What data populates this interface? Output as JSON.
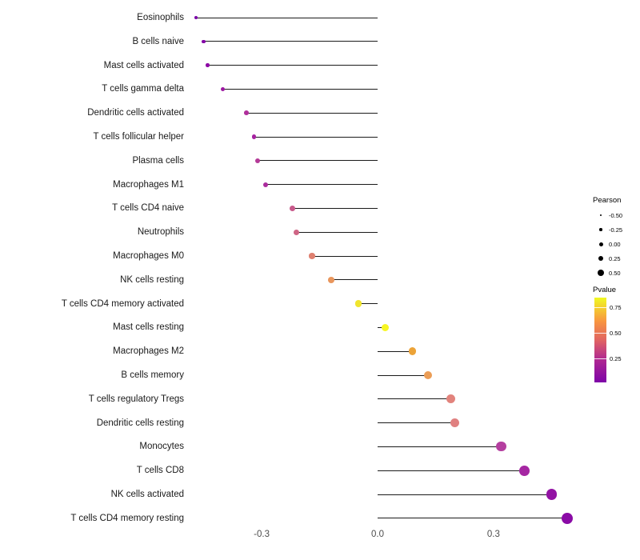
{
  "chart_data": {
    "type": "lollipop",
    "title": "",
    "xlabel": "",
    "ylabel": "",
    "x_ticks": [
      "-0.3",
      "0.0",
      "0.3"
    ],
    "xlim": [
      -0.52,
      0.55
    ],
    "grid": false,
    "categories": [
      "Eosinophils",
      "B cells naive",
      "Mast cells activated",
      "T cells gamma delta",
      "Dendritic cells activated",
      "T cells follicular helper",
      "Plasma cells",
      "Macrophages M1",
      "T cells CD4 naive",
      "Neutrophils",
      "Macrophages M0",
      "NK cells resting",
      "T cells CD4 memory activated",
      "Mast cells resting",
      "Macrophages M2",
      "B cells memory",
      "T cells regulatory  Tregs",
      "Dendritic cells resting",
      "Monocytes",
      "T cells CD8",
      "NK cells activated",
      "T cells CD4 memory resting"
    ],
    "values": [
      -0.47,
      -0.45,
      -0.44,
      -0.4,
      -0.34,
      -0.32,
      -0.31,
      -0.29,
      -0.22,
      -0.21,
      -0.17,
      -0.12,
      -0.05,
      0.02,
      0.09,
      0.13,
      0.19,
      0.2,
      0.32,
      0.38,
      0.45,
      0.49
    ],
    "colors": [
      "#7a02a8",
      "#8405a7",
      "#8d09a5",
      "#9c17a1",
      "#b02f9b",
      "#a622a0",
      "#b43a97",
      "#ab2c9d",
      "#c85a8b",
      "#cf6585",
      "#df8070",
      "#e9965d",
      "#f0e52d",
      "#f7f622",
      "#eca338",
      "#eb9d56",
      "#e2837c",
      "#e08080",
      "#b53fa0",
      "#a526a2",
      "#9313a4",
      "#8a0ba6"
    ],
    "legend": {
      "pearson": {
        "title": "Pearson",
        "size_labels": [
          "-0.50",
          "-0.25",
          "0.00",
          "0.25",
          "0.50"
        ]
      },
      "pvalue": {
        "title": "Pvalue",
        "tick_labels": [
          "0.75",
          "0.50",
          "0.25"
        ],
        "gradient": [
          "#f0f921",
          "#f89540",
          "#e16462",
          "#b12a90",
          "#7e03a8"
        ]
      }
    }
  }
}
